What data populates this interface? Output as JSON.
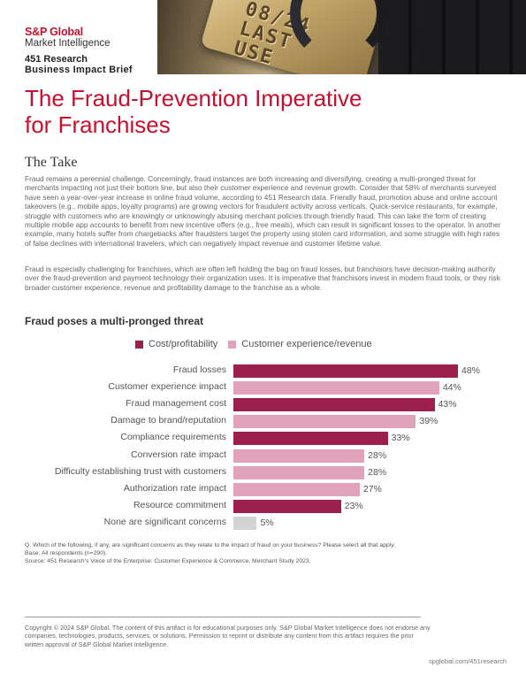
{
  "brand": {
    "logo": "S&P Global",
    "subtitle": "Market Intelligence",
    "research": "451 Research",
    "brief": "Business Impact Brief"
  },
  "title_line1": "The Fraud-Prevention Imperative",
  "title_line2": "for Franchises",
  "take_heading": "The Take",
  "paragraphs": [
    "Fraud remains a perennial challenge. Concerningly, fraud instances are both increasing and diversifying, creating a multi-pronged threat for merchants impacting not just their bottom line, but also their customer experience and revenue growth. Consider that 58% of merchants surveyed have seen a year-over-year increase in online fraud volume, according to 451 Research data. Friendly fraud, promotion abuse and online account takeovers (e.g., mobile apps, loyalty programs) are growing vectors for fraudulent activity across verticals. Quick-service restaurants, for example, struggle with customers who are knowingly or unknowingly abusing merchant policies through friendly fraud. This can take the form of creating multiple mobile app accounts to benefit from new incentive offers (e.g., free meals), which can result in significant losses to the operator. In another example, many hotels suffer from chargebacks after fraudsters target the property using stolen card information, and some struggle with high rates of false declines with international travelers, which can negatively impact revenue and customer lifetime value.",
    "Fraud is especially challenging for franchises, which are often left holding the bag on fraud losses, but franchisors have decision-making authority over the fraud-prevention and payment technology their organization uses. It is imperative that franchisors invest in modern fraud tools, or they risk broader customer experience, revenue and profitability damage to the franchise as a whole."
  ],
  "chart_heading": "Fraud poses a multi-pronged threat",
  "colors": {
    "brand_red": "#c8102e",
    "cost": "#9c1f4e",
    "cx": "#e0a3bb",
    "none": "#d3d3d3"
  },
  "chart_data": {
    "type": "bar",
    "orientation": "horizontal",
    "title": "Fraud poses a multi-pronged threat",
    "legend": [
      {
        "key": "cost",
        "label": "Cost/profitability"
      },
      {
        "key": "cx",
        "label": "Customer experience/revenue"
      }
    ],
    "legend_position": "top",
    "grid": false,
    "xlim": [
      0,
      100
    ],
    "items": [
      {
        "label": "Fraud losses",
        "value": 48,
        "display": "48%",
        "group": "cost"
      },
      {
        "label": "Customer experience impact",
        "value": 44,
        "display": "44%",
        "group": "cx"
      },
      {
        "label": "Fraud management cost",
        "value": 43,
        "display": "43%",
        "group": "cost"
      },
      {
        "label": "Damage to brand/reputation",
        "value": 39,
        "display": "39%",
        "group": "cx"
      },
      {
        "label": "Compliance requirements",
        "value": 33,
        "display": "33%",
        "group": "cost"
      },
      {
        "label": "Conversion rate impact",
        "value": 28,
        "display": "28%",
        "group": "cx"
      },
      {
        "label": "Difficulty establishing trust with customers",
        "value": 28,
        "display": "28%",
        "group": "cx"
      },
      {
        "label": "Authorization rate impact",
        "value": 27,
        "display": "27%",
        "group": "cx"
      },
      {
        "label": "Resource commitment",
        "value": 23,
        "display": "23%",
        "group": "cost"
      },
      {
        "label": "None are significant concerns",
        "value": 5,
        "display": "5%",
        "group": "none"
      }
    ]
  },
  "notes": [
    "Q. Which of the following, if any, are significant concerns as they relate to the impact of fraud on your business? Please select all that apply.",
    "Base: All respondents (n=290).",
    "Source: 451 Research's Voice of the Enterprise: Customer Experience & Commerce, Merchant Study 2023."
  ],
  "copyright": "Copyright © 2024 S&P Global. The content of this artifact is for educational purposes only. S&P Global Market Intelligence does not endorse any companies, technologies, products, services, or solutions. Permission to reprint or distribute any content from this artifact requires the prior written approval of S&P Global Market Intelligence.",
  "footer_url": "spglobal.com/451research",
  "photo": {
    "card_digits_line1": "08/24",
    "card_digits_line2": "LAST",
    "card_digits_line3": "USE",
    "icons": [
      "credit-card",
      "padlock",
      "keyboard"
    ]
  }
}
